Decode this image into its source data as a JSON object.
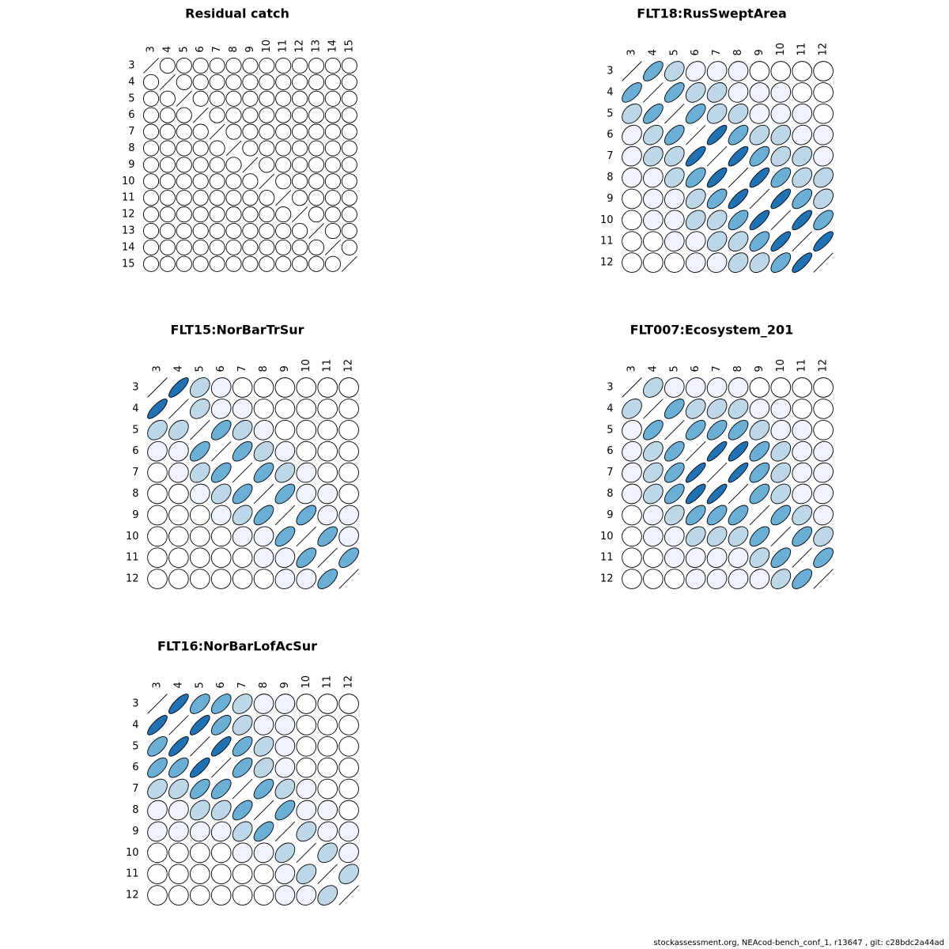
{
  "palette": [
    "#ffffff",
    "#eff3ff",
    "#bdd7e7",
    "#6baed6",
    "#2171b5"
  ],
  "footer": "stockassessment.org, NEAcod-bench_conf_1, r13647 , git: c28bdc2a44ad",
  "chart_data": [
    {
      "type": "heatmap",
      "title": "Residual catch",
      "ages": [
        "3",
        "4",
        "5",
        "6",
        "7",
        "8",
        "9",
        "10",
        "11",
        "12",
        "13",
        "14",
        "15"
      ],
      "matrix": [
        [
          1,
          0,
          0,
          0,
          0,
          0,
          0,
          0,
          0,
          0,
          0,
          0,
          0
        ],
        [
          0,
          1,
          0,
          0,
          0,
          0,
          0,
          0,
          0,
          0,
          0,
          0,
          0
        ],
        [
          0,
          0,
          1,
          0,
          0,
          0,
          0,
          0,
          0,
          0,
          0,
          0,
          0
        ],
        [
          0,
          0,
          0,
          1,
          0,
          0,
          0,
          0,
          0,
          0,
          0,
          0,
          0
        ],
        [
          0,
          0,
          0,
          0,
          1,
          0,
          0,
          0,
          0,
          0,
          0,
          0,
          0
        ],
        [
          0,
          0,
          0,
          0,
          0,
          1,
          0,
          0,
          0,
          0,
          0,
          0,
          0
        ],
        [
          0,
          0,
          0,
          0,
          0,
          0,
          1,
          0,
          0,
          0,
          0,
          0,
          0
        ],
        [
          0,
          0,
          0,
          0,
          0,
          0,
          0,
          1,
          0,
          0,
          0,
          0,
          0
        ],
        [
          0,
          0,
          0,
          0,
          0,
          0,
          0,
          0,
          1,
          0,
          0,
          0,
          0
        ],
        [
          0,
          0,
          0,
          0,
          0,
          0,
          0,
          0,
          0,
          1,
          0,
          0,
          0
        ],
        [
          0,
          0,
          0,
          0,
          0,
          0,
          0,
          0,
          0,
          0,
          1,
          0,
          0
        ],
        [
          0,
          0,
          0,
          0,
          0,
          0,
          0,
          0,
          0,
          0,
          0,
          1,
          0
        ],
        [
          0,
          0,
          0,
          0,
          0,
          0,
          0,
          0,
          0,
          0,
          0,
          0,
          1
        ]
      ]
    },
    {
      "type": "heatmap",
      "title": "FLT18:RusSweptArea",
      "ages": [
        "3",
        "4",
        "5",
        "6",
        "7",
        "8",
        "9",
        "10",
        "11",
        "12"
      ],
      "matrix": [
        [
          1.0,
          0.65,
          0.35,
          0.2,
          0.1,
          0.05,
          0.0,
          0.0,
          0.0,
          0.0
        ],
        [
          0.65,
          1.0,
          0.65,
          0.35,
          0.3,
          0.1,
          0.05,
          0.05,
          0.0,
          0.0
        ],
        [
          0.35,
          0.65,
          1.0,
          0.6,
          0.35,
          0.3,
          0.1,
          0.05,
          0.05,
          0.0
        ],
        [
          0.2,
          0.35,
          0.6,
          1.0,
          0.8,
          0.6,
          0.35,
          0.3,
          0.1,
          0.05
        ],
        [
          0.1,
          0.3,
          0.35,
          0.8,
          1.0,
          0.8,
          0.6,
          0.35,
          0.3,
          0.1
        ],
        [
          0.05,
          0.1,
          0.3,
          0.6,
          0.8,
          1.0,
          0.8,
          0.6,
          0.35,
          0.3
        ],
        [
          0.0,
          0.05,
          0.1,
          0.35,
          0.6,
          0.8,
          1.0,
          0.8,
          0.6,
          0.35
        ],
        [
          0.0,
          0.05,
          0.05,
          0.3,
          0.35,
          0.6,
          0.8,
          1.0,
          0.8,
          0.6
        ],
        [
          0.0,
          0.0,
          0.05,
          0.1,
          0.3,
          0.35,
          0.6,
          0.8,
          1.0,
          0.8
        ],
        [
          0.0,
          0.0,
          0.0,
          0.05,
          0.1,
          0.3,
          0.35,
          0.6,
          0.8,
          1.0
        ]
      ]
    },
    {
      "type": "heatmap",
      "title": "FLT15:NorBarTrSur",
      "ages": [
        "3",
        "4",
        "5",
        "6",
        "7",
        "8",
        "9",
        "10",
        "11",
        "12"
      ],
      "matrix": [
        [
          1.0,
          0.8,
          0.35,
          0.1,
          0.0,
          0.0,
          0.0,
          0.0,
          0.0,
          0.0
        ],
        [
          0.8,
          1.0,
          0.35,
          0.1,
          0.05,
          0.0,
          0.0,
          0.0,
          0.0,
          0.0
        ],
        [
          0.35,
          0.35,
          1.0,
          0.6,
          0.35,
          0.1,
          0.0,
          0.0,
          0.0,
          0.0
        ],
        [
          0.1,
          0.1,
          0.6,
          1.0,
          0.6,
          0.35,
          0.1,
          0.0,
          0.0,
          0.0
        ],
        [
          0.0,
          0.05,
          0.35,
          0.6,
          1.0,
          0.6,
          0.35,
          0.1,
          0.0,
          0.0
        ],
        [
          0.0,
          0.0,
          0.1,
          0.35,
          0.6,
          1.0,
          0.6,
          0.1,
          0.05,
          0.0
        ],
        [
          0.0,
          0.0,
          0.0,
          0.1,
          0.35,
          0.6,
          1.0,
          0.6,
          0.1,
          0.1
        ],
        [
          0.0,
          0.0,
          0.0,
          0.0,
          0.1,
          0.1,
          0.6,
          1.0,
          0.6,
          0.1
        ],
        [
          0.0,
          0.0,
          0.0,
          0.0,
          0.0,
          0.05,
          0.1,
          0.6,
          1.0,
          0.6
        ],
        [
          0.0,
          0.0,
          0.0,
          0.0,
          0.0,
          0.0,
          0.1,
          0.1,
          0.6,
          1.0
        ]
      ]
    },
    {
      "type": "heatmap",
      "title": "FLT007:Ecosystem_201",
      "ages": [
        "3",
        "4",
        "5",
        "6",
        "7",
        "8",
        "9",
        "10",
        "11",
        "12"
      ],
      "matrix": [
        [
          1.0,
          0.35,
          0.1,
          0.1,
          0.1,
          0.05,
          0.0,
          0.0,
          0.0,
          0.0
        ],
        [
          0.35,
          1.0,
          0.6,
          0.35,
          0.35,
          0.3,
          0.1,
          0.05,
          0.0,
          0.0
        ],
        [
          0.1,
          0.6,
          1.0,
          0.6,
          0.6,
          0.6,
          0.35,
          0.1,
          0.05,
          0.0
        ],
        [
          0.1,
          0.35,
          0.6,
          1.0,
          0.85,
          0.8,
          0.6,
          0.35,
          0.1,
          0.1
        ],
        [
          0.1,
          0.35,
          0.6,
          0.85,
          1.0,
          0.85,
          0.6,
          0.35,
          0.1,
          0.1
        ],
        [
          0.05,
          0.3,
          0.6,
          0.8,
          0.85,
          1.0,
          0.6,
          0.35,
          0.1,
          0.1
        ],
        [
          0.0,
          0.1,
          0.35,
          0.6,
          0.6,
          0.6,
          1.0,
          0.6,
          0.35,
          0.1
        ],
        [
          0.0,
          0.05,
          0.1,
          0.35,
          0.35,
          0.35,
          0.6,
          1.0,
          0.6,
          0.35
        ],
        [
          0.0,
          0.0,
          0.05,
          0.1,
          0.1,
          0.1,
          0.35,
          0.6,
          1.0,
          0.6
        ],
        [
          0.0,
          0.0,
          0.0,
          0.1,
          0.1,
          0.1,
          0.1,
          0.35,
          0.6,
          1.0
        ]
      ]
    },
    {
      "type": "heatmap",
      "title": "FLT16:NorBarLofAcSur",
      "ages": [
        "3",
        "4",
        "5",
        "6",
        "7",
        "8",
        "9",
        "10",
        "11",
        "12"
      ],
      "matrix": [
        [
          1.0,
          0.8,
          0.6,
          0.6,
          0.35,
          0.05,
          0.05,
          0.0,
          0.0,
          0.0
        ],
        [
          0.8,
          1.0,
          0.8,
          0.6,
          0.35,
          0.05,
          0.05,
          0.0,
          0.0,
          0.0
        ],
        [
          0.6,
          0.8,
          1.0,
          0.8,
          0.6,
          0.35,
          0.05,
          0.0,
          0.0,
          0.0
        ],
        [
          0.6,
          0.6,
          0.8,
          1.0,
          0.6,
          0.35,
          0.1,
          0.0,
          0.0,
          0.0
        ],
        [
          0.35,
          0.35,
          0.6,
          0.6,
          1.0,
          0.6,
          0.35,
          0.1,
          0.0,
          0.0
        ],
        [
          0.1,
          0.1,
          0.35,
          0.35,
          0.6,
          1.0,
          0.6,
          0.1,
          0.05,
          0.0
        ],
        [
          0.1,
          0.1,
          0.1,
          0.1,
          0.35,
          0.6,
          1.0,
          0.35,
          0.1,
          0.05
        ],
        [
          0.0,
          0.0,
          0.0,
          0.0,
          0.05,
          0.05,
          0.35,
          1.0,
          0.35,
          0.1
        ],
        [
          0.0,
          0.0,
          0.0,
          0.0,
          0.0,
          0.0,
          0.1,
          0.35,
          1.0,
          0.35
        ],
        [
          0.0,
          0.0,
          0.0,
          0.0,
          0.0,
          0.0,
          0.05,
          0.1,
          0.35,
          1.0
        ]
      ]
    }
  ]
}
